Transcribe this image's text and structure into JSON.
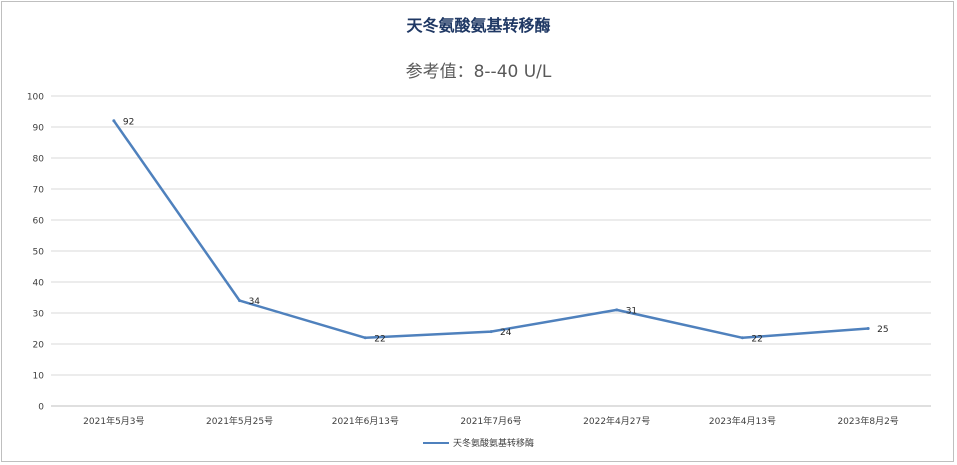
{
  "chart_data": {
    "type": "line",
    "title": "天冬氨酸氨基转移酶",
    "subtitle": "参考值：8--40 U/L",
    "categories": [
      "2021年5月3号",
      "2021年5月25号",
      "2021年6月13号",
      "2021年7月6号",
      "2022年4月27号",
      "2023年4月13号",
      "2023年8月2号"
    ],
    "series": [
      {
        "name": "天冬氨酸氨基转移酶",
        "values": [
          92,
          34,
          22,
          24,
          31,
          22,
          25
        ],
        "color": "#4f81bd"
      }
    ],
    "ylim": [
      0,
      100
    ],
    "yticks": [
      0,
      10,
      20,
      30,
      40,
      50,
      60,
      70,
      80,
      90,
      100
    ],
    "grid": true,
    "legend_position": "bottom",
    "data_labels": true
  }
}
